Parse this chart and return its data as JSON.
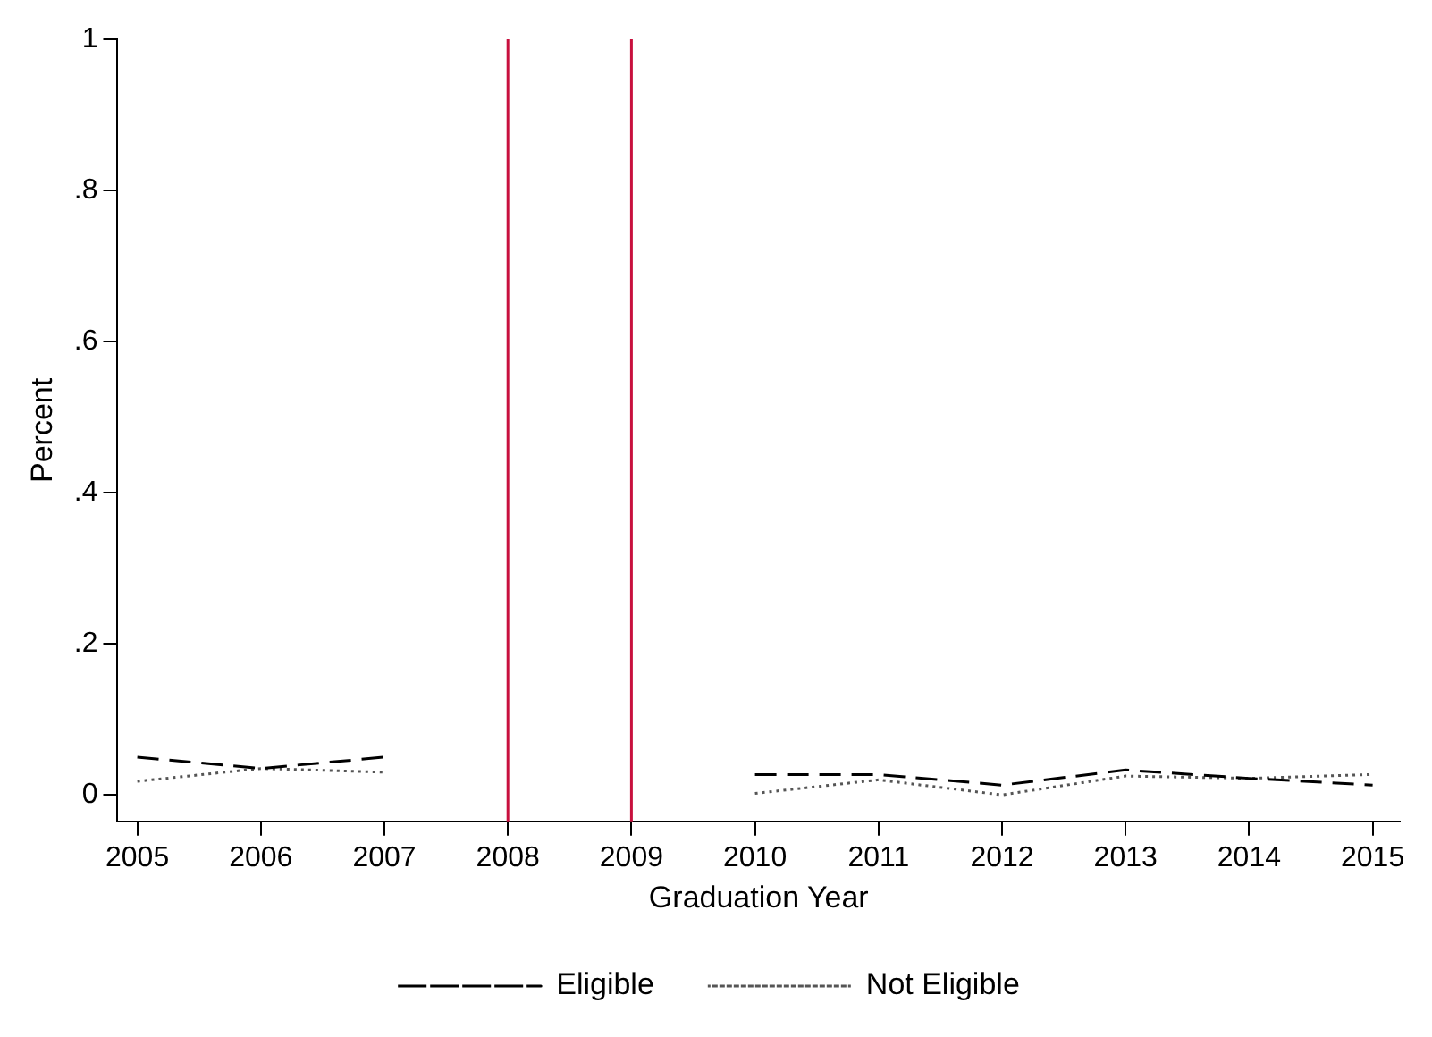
{
  "chart_data": {
    "type": "line",
    "xlabel": "Graduation Year",
    "ylabel": "Percent",
    "x": [
      2005,
      2006,
      2007,
      2008,
      2009,
      2010,
      2011,
      2012,
      2013,
      2014,
      2015
    ],
    "series": [
      {
        "name": "Eligible",
        "color": "#000000",
        "line_style": "dashed",
        "values": [
          0.05,
          0.035,
          0.05,
          null,
          null,
          0.027,
          0.027,
          0.013,
          0.033,
          0.022,
          0.013
        ]
      },
      {
        "name": "Not Eligible",
        "color": "#555555",
        "line_style": "dotted",
        "values": [
          0.018,
          0.035,
          0.03,
          null,
          null,
          0.002,
          0.02,
          0.0,
          0.025,
          0.022,
          0.027
        ]
      }
    ],
    "xlim": [
      2004.84,
      2015.22
    ],
    "xticks": [
      2005,
      2006,
      2007,
      2008,
      2009,
      2010,
      2011,
      2012,
      2013,
      2014,
      2015
    ],
    "ylim": [
      -0.035,
      1
    ],
    "yticks": [
      0,
      {
        "value": 0.2,
        "label": ".2"
      },
      {
        "value": 0.4,
        "label": ".4"
      },
      {
        "value": 0.6,
        "label": ".6"
      },
      {
        "value": 0.8,
        "label": ".8"
      },
      1
    ],
    "ref_lines": [
      {
        "axis": "x",
        "value": 2008,
        "color": "#c8103e"
      },
      {
        "axis": "x",
        "value": 2009,
        "color": "#c8103e"
      }
    ],
    "grid": false,
    "legend": "bottom",
    "marker": "none"
  }
}
